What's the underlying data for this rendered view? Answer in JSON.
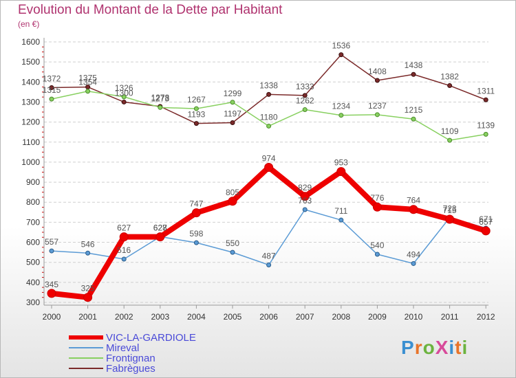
{
  "title": "Evolution du Montant de la Dette par Habitant",
  "unit": "(en €)",
  "logo": {
    "text": "ProXiti",
    "letters": [
      "P",
      "r",
      "o",
      "X",
      "i",
      "t",
      "i"
    ],
    "colors": [
      "#3a8fd1",
      "#e8742a",
      "#6cb33f",
      "#d84a9a",
      "#3a8fd1",
      "#e8742a",
      "#6cb33f"
    ]
  },
  "chart_data": {
    "type": "line",
    "title": "Evolution du Montant de la Dette par Habitant",
    "ylabel": "(en €)",
    "xlabel": "",
    "x": [
      "2000",
      "2001",
      "2002",
      "2003",
      "2004",
      "2005",
      "2006",
      "2007",
      "2008",
      "2009",
      "2010",
      "2011",
      "2012"
    ],
    "ylim": [
      300,
      1600
    ],
    "yticks": [
      "300",
      "400",
      "500",
      "600",
      "700",
      "800",
      "900",
      "1000",
      "1100",
      "1200",
      "1300",
      "1400",
      "1500",
      "1600"
    ],
    "grid": "horizontal-dashed",
    "legend_position": "bottom-left",
    "series": [
      {
        "name": "VIC-LA-GARDIOLE",
        "color": "#ee0000",
        "values": [
          345,
          325,
          627,
          627,
          747,
          805,
          974,
          829,
          953,
          776,
          764,
          715,
          657
        ],
        "labels": [
          "345",
          "325",
          "627",
          "627",
          "747",
          "805",
          "974",
          "829",
          "953",
          "776",
          "764",
          "715",
          "657"
        ]
      },
      {
        "name": "Mireval",
        "color": "#5b9bd5",
        "values": [
          557,
          546,
          516,
          628,
          598,
          550,
          487,
          763,
          711,
          540,
          494,
          723,
          671
        ],
        "labels": [
          "557",
          "546",
          "516",
          "628",
          "598",
          "550",
          "487",
          "763",
          "711",
          "540",
          "494",
          "723",
          "671"
        ]
      },
      {
        "name": "Frontignan",
        "color": "#88d060",
        "values": [
          1315,
          1354,
          1326,
          1273,
          1267,
          1299,
          1180,
          1262,
          1234,
          1237,
          1215,
          1109,
          1139
        ],
        "labels": [
          "1315",
          "1354",
          "1326",
          "1273",
          "1267",
          "1299",
          "1180",
          "1262",
          "1234",
          "1237",
          "1215",
          "1109",
          "1139"
        ]
      },
      {
        "name": "Fabrègues",
        "color": "#7b2a2a",
        "values": [
          1372,
          1375,
          1300,
          1278,
          1193,
          1197,
          1338,
          1333,
          1536,
          1408,
          1438,
          1382,
          1311
        ],
        "labels": [
          "1372",
          "1375",
          "1300",
          "1278",
          "1193",
          "1197",
          "1338",
          "1333",
          "1536",
          "1408",
          "1438",
          "1382",
          "1311"
        ]
      }
    ]
  }
}
